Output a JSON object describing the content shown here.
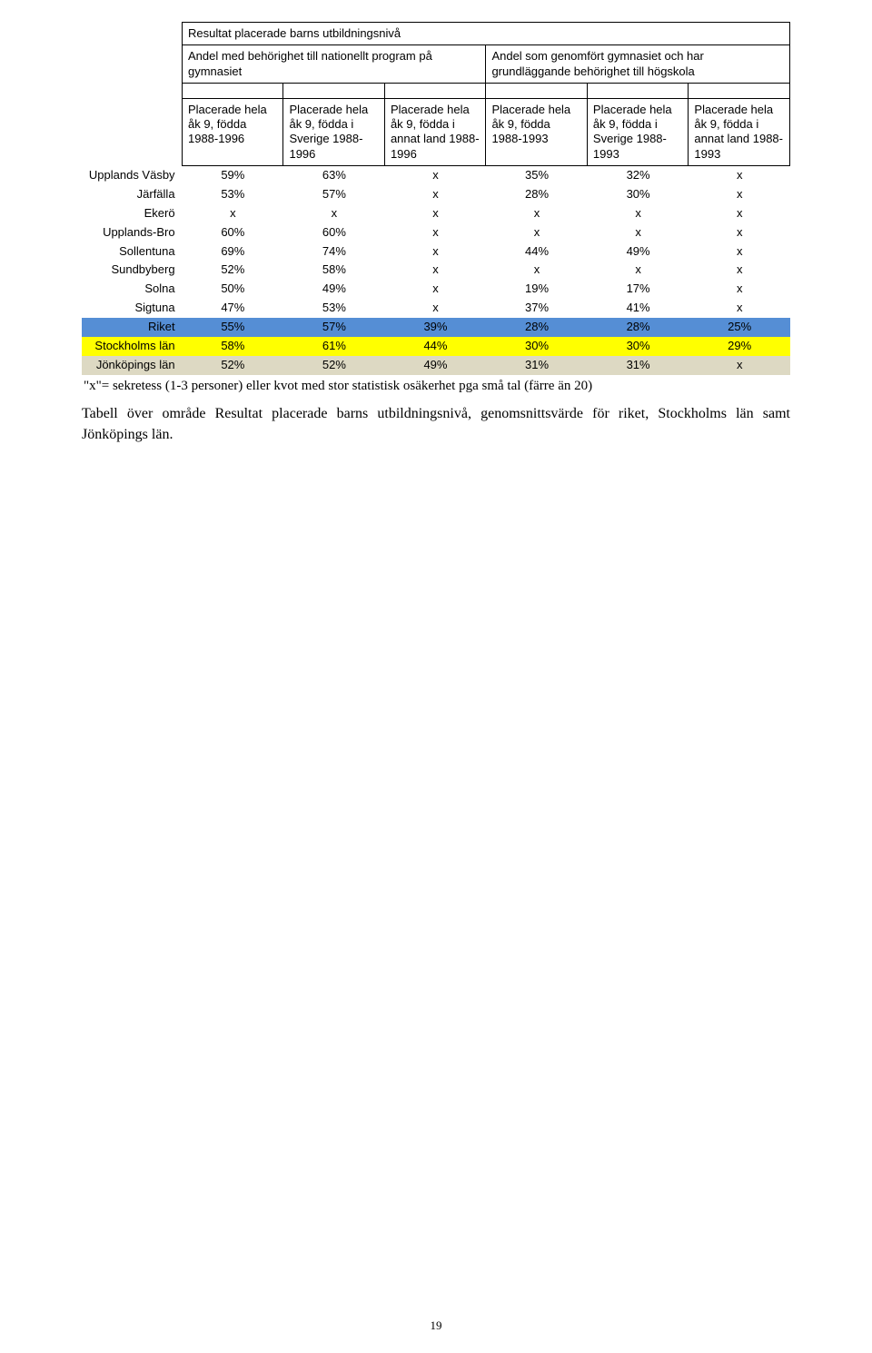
{
  "title": "Resultat placerade barns utbildningsnivå",
  "sub_left": "Andel med behörighet till nationellt program på gymnasiet",
  "sub_right": "Andel som genomfört gymnasiet och har grundläggande behörighet till högskola",
  "col_headings": [
    "Placerade hela åk 9, födda 1988-1996",
    "Placerade hela åk 9, födda i Sverige 1988-1996",
    "Placerade hela åk 9, födda i annat land 1988-1996",
    "Placerade hela åk 9, födda 1988-1993",
    "Placerade hela åk 9, födda i Sverige 1988-1993",
    "Placerade hela åk 9, födda i annat land 1988-1993"
  ],
  "rows": [
    {
      "cat": "Upplands Väsby",
      "vals": [
        "59%",
        "63%",
        "x",
        "35%",
        "32%",
        "x"
      ],
      "hl": ""
    },
    {
      "cat": "Järfälla",
      "vals": [
        "53%",
        "57%",
        "x",
        "28%",
        "30%",
        "x"
      ],
      "hl": ""
    },
    {
      "cat": "Ekerö",
      "vals": [
        "x",
        "x",
        "x",
        "x",
        "x",
        "x"
      ],
      "hl": ""
    },
    {
      "cat": "Upplands-Bro",
      "vals": [
        "60%",
        "60%",
        "x",
        "x",
        "x",
        "x"
      ],
      "hl": ""
    },
    {
      "cat": "Sollentuna",
      "vals": [
        "69%",
        "74%",
        "x",
        "44%",
        "49%",
        "x"
      ],
      "hl": ""
    },
    {
      "cat": "Sundbyberg",
      "vals": [
        "52%",
        "58%",
        "x",
        "x",
        "x",
        "x"
      ],
      "hl": ""
    },
    {
      "cat": "Solna",
      "vals": [
        "50%",
        "49%",
        "x",
        "19%",
        "17%",
        "x"
      ],
      "hl": ""
    },
    {
      "cat": "Sigtuna",
      "vals": [
        "47%",
        "53%",
        "x",
        "37%",
        "41%",
        "x"
      ],
      "hl": ""
    },
    {
      "cat": "Riket",
      "vals": [
        "55%",
        "57%",
        "39%",
        "28%",
        "28%",
        "25%"
      ],
      "hl": "blue"
    },
    {
      "cat": "Stockholms län",
      "vals": [
        "58%",
        "61%",
        "44%",
        "30%",
        "30%",
        "29%"
      ],
      "hl": "yellow"
    },
    {
      "cat": "Jönköpings län",
      "vals": [
        "52%",
        "52%",
        "49%",
        "31%",
        "31%",
        "x"
      ],
      "hl": "tan"
    }
  ],
  "highlight_colors": {
    "blue": "#558ed5",
    "yellow": "#ffff00",
    "tan": "#ddd9c3"
  },
  "fonts": {
    "body": "Times New Roman",
    "table": "Arial"
  },
  "footnote": "\"x\"= sekretess (1-3 personer) eller kvot med stor statistisk osäkerhet pga små tal (färre än 20)",
  "caption": "Tabell över område Resultat placerade barns utbildningsnivå, genomsnittsvärde för riket, Stockholms län samt Jönköpings län.",
  "page_number": "19"
}
